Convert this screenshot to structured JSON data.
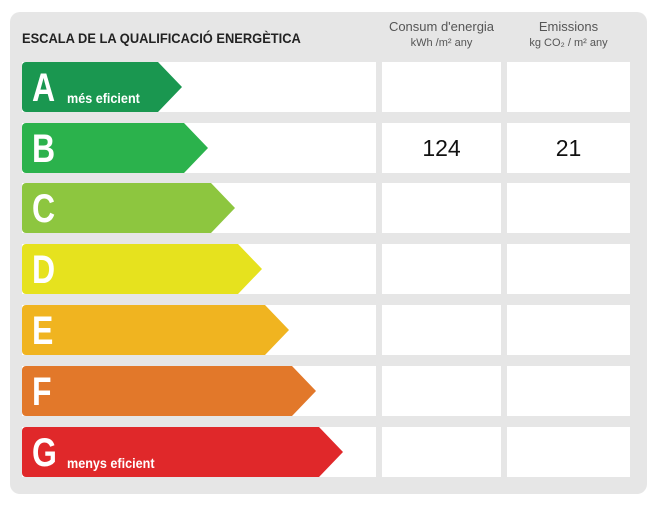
{
  "title": "ESCALA DE LA QUALIFICACIÓ ENERGÈTICA",
  "columns": [
    {
      "label": "Consum d'energia",
      "unit": "kWh /m² any"
    },
    {
      "label": "Emissions",
      "unit": "kg CO₂ / m² any"
    }
  ],
  "rows": [
    {
      "letter": "A",
      "subtitle": "més eficient",
      "color": "#1a9750",
      "consum": "",
      "emissions": ""
    },
    {
      "letter": "B",
      "subtitle": "",
      "color": "#2bb24c",
      "consum": "124",
      "emissions": "21"
    },
    {
      "letter": "C",
      "subtitle": "",
      "color": "#8dc63f",
      "consum": "",
      "emissions": ""
    },
    {
      "letter": "D",
      "subtitle": "",
      "color": "#e6e21e",
      "consum": "",
      "emissions": ""
    },
    {
      "letter": "E",
      "subtitle": "",
      "color": "#f0b420",
      "consum": "",
      "emissions": ""
    },
    {
      "letter": "F",
      "subtitle": "",
      "color": "#e2782a",
      "consum": "",
      "emissions": ""
    },
    {
      "letter": "G",
      "subtitle": "menys eficient",
      "color": "#e0282a",
      "consum": "",
      "emissions": ""
    }
  ]
}
